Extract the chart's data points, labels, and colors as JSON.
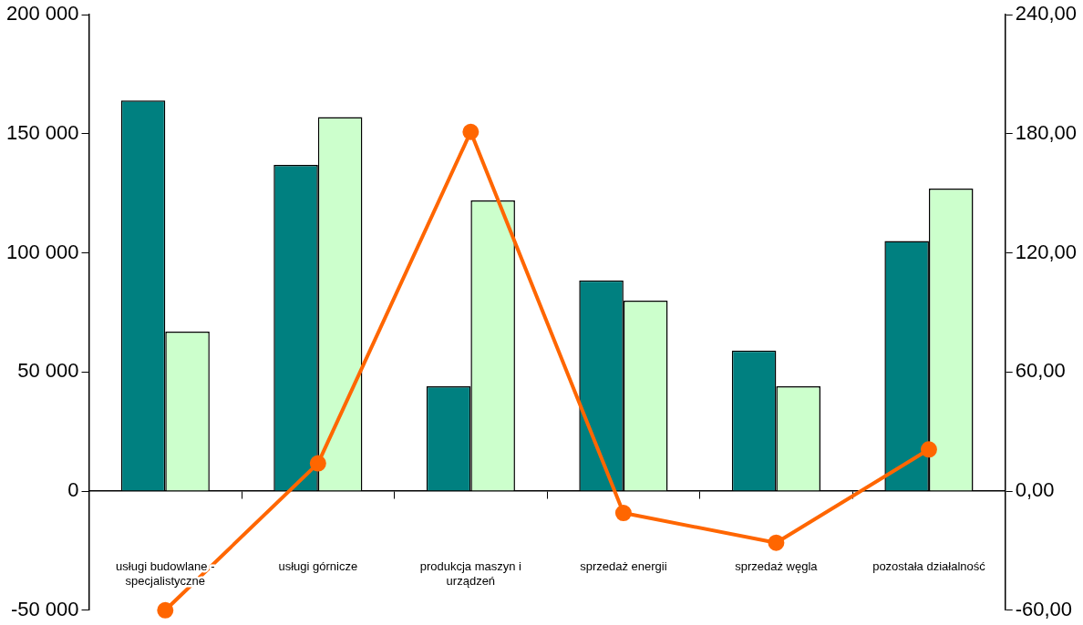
{
  "chart_data": {
    "type": "bar",
    "categories": [
      "usługi budowlane - specjalistyczne",
      "usługi górnicze",
      "produkcja maszyn i urządzeń",
      "sprzedaż energii",
      "sprzedaż węgla",
      "pozostała działalność"
    ],
    "series": [
      {
        "color": "#008080",
        "values": [
          164000,
          137000,
          44000,
          88500,
          59000,
          105000
        ]
      },
      {
        "color": "#ccffcc",
        "values": [
          67000,
          157000,
          122000,
          80000,
          44000,
          127000
        ]
      },
      {
        "type": "line",
        "axis": "y2",
        "color": "#ff6600",
        "marker": "circle",
        "values": [
          -60,
          14,
          181,
          -11,
          -26,
          21
        ]
      }
    ],
    "ylim": [
      -50000,
      200000
    ],
    "yticks": [
      {
        "value": -50000,
        "label": "-50 000"
      },
      {
        "value": 0,
        "label": "0"
      },
      {
        "value": 50000,
        "label": "50 000"
      },
      {
        "value": 100000,
        "label": "100 000"
      },
      {
        "value": 150000,
        "label": "150 000"
      },
      {
        "value": 200000,
        "label": "200 000"
      }
    ],
    "y2lim": [
      -60,
      240
    ],
    "y2ticks": [
      {
        "value": -60,
        "label": "-60,00"
      },
      {
        "value": 0,
        "label": "0,00"
      },
      {
        "value": 60,
        "label": "60,00"
      },
      {
        "value": 120,
        "label": "120,00"
      },
      {
        "value": 180,
        "label": "180,00"
      },
      {
        "value": 240,
        "label": "240,00"
      }
    ],
    "legend": false
  }
}
